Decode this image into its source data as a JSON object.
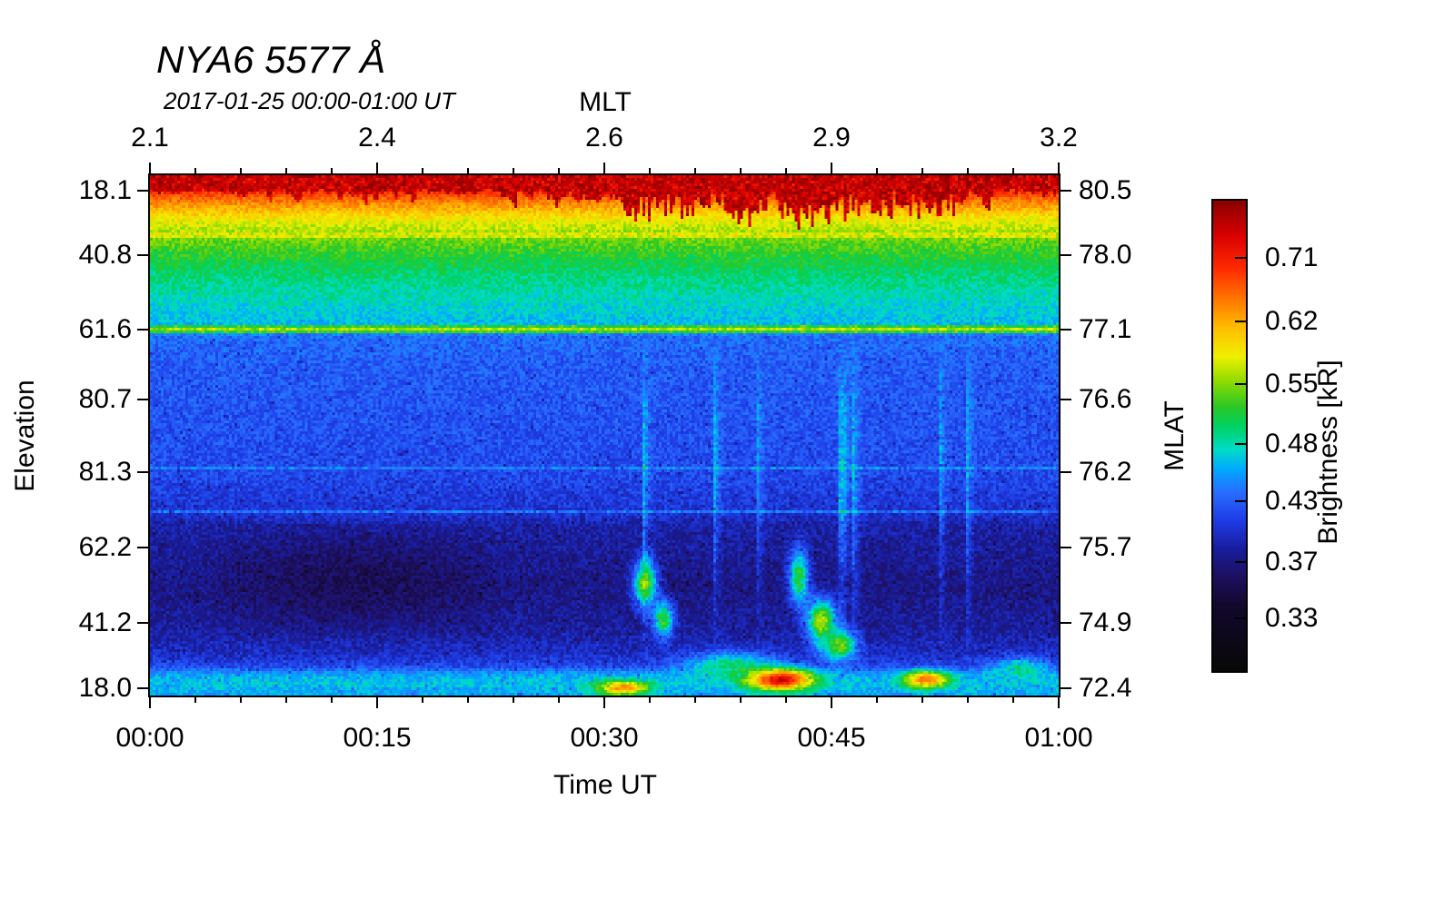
{
  "chart_data": {
    "type": "heatmap",
    "title": "NYA6 5577 Å",
    "subtitle": "2017-01-25 00:00-01:00 UT",
    "top_axis": {
      "label": "MLT",
      "ticks": [
        "2.1",
        "2.4",
        "2.6",
        "2.9",
        "3.2"
      ],
      "tick_positions": [
        0,
        0.25,
        0.5,
        0.75,
        1
      ]
    },
    "x_axis": {
      "label": "Time UT",
      "ticks": [
        "00:00",
        "00:15",
        "00:30",
        "00:45",
        "01:00"
      ],
      "tick_positions": [
        0,
        0.25,
        0.5,
        0.75,
        1
      ]
    },
    "y_axis_left": {
      "label": "Elevation",
      "ticks": [
        "18.1",
        "40.8",
        "61.6",
        "80.7",
        "81.3",
        "62.2",
        "41.2",
        "18.0"
      ],
      "tick_positions": [
        0.03,
        0.153,
        0.296,
        0.431,
        0.57,
        0.715,
        0.861,
        0.986
      ]
    },
    "y_axis_right": {
      "label": "MLAT",
      "ticks": [
        "80.5",
        "78.0",
        "77.1",
        "76.6",
        "76.2",
        "75.7",
        "74.9",
        "72.4"
      ],
      "tick_positions": [
        0.03,
        0.153,
        0.296,
        0.431,
        0.57,
        0.715,
        0.861,
        0.986
      ]
    },
    "colorbar": {
      "label": "Brightness [kR]",
      "ticks": [
        "0.71",
        "0.62",
        "0.55",
        "0.48",
        "0.43",
        "0.37",
        "0.33"
      ],
      "tick_positions": [
        0.122,
        0.257,
        0.39,
        0.517,
        0.639,
        0.768,
        0.888
      ]
    },
    "colormap_stops": [
      [
        0.0,
        [
          8,
          8,
          8
        ]
      ],
      [
        0.14,
        [
          18,
          8,
          45
        ]
      ],
      [
        0.2,
        [
          30,
          15,
          95
        ]
      ],
      [
        0.26,
        [
          25,
          30,
          160
        ]
      ],
      [
        0.32,
        [
          30,
          60,
          230
        ]
      ],
      [
        0.38,
        [
          40,
          110,
          255
        ]
      ],
      [
        0.43,
        [
          0,
          170,
          255
        ]
      ],
      [
        0.47,
        [
          0,
          220,
          200
        ]
      ],
      [
        0.52,
        [
          0,
          210,
          100
        ]
      ],
      [
        0.56,
        [
          40,
          200,
          40
        ]
      ],
      [
        0.62,
        [
          150,
          220,
          0
        ]
      ],
      [
        0.67,
        [
          240,
          240,
          0
        ]
      ],
      [
        0.73,
        [
          255,
          190,
          0
        ]
      ],
      [
        0.79,
        [
          255,
          120,
          0
        ]
      ],
      [
        0.86,
        [
          255,
          40,
          0
        ]
      ],
      [
        0.93,
        [
          215,
          0,
          0
        ]
      ],
      [
        1.0,
        [
          140,
          0,
          0
        ]
      ]
    ],
    "render": {
      "seed": 1337,
      "noise": 0.075,
      "profile": [
        [
          0.0,
          0.95
        ],
        [
          0.02,
          0.89
        ],
        [
          0.05,
          0.78
        ],
        [
          0.085,
          0.67
        ],
        [
          0.12,
          0.6
        ],
        [
          0.16,
          0.545
        ],
        [
          0.2,
          0.505
        ],
        [
          0.25,
          0.465
        ],
        [
          0.29,
          0.44
        ],
        [
          0.31,
          0.375
        ],
        [
          0.36,
          0.358
        ],
        [
          0.5,
          0.345
        ],
        [
          0.575,
          0.335
        ],
        [
          0.62,
          0.315
        ],
        [
          0.655,
          0.3
        ],
        [
          0.675,
          0.265
        ],
        [
          0.79,
          0.235
        ],
        [
          0.87,
          0.255
        ],
        [
          0.92,
          0.29
        ],
        [
          0.945,
          0.33
        ],
        [
          0.96,
          0.42
        ],
        [
          0.978,
          0.455
        ],
        [
          1.0,
          0.425
        ]
      ],
      "hlines": [
        {
          "t": 0.113,
          "w": 0.007,
          "v": 0.695
        },
        {
          "t": 0.295,
          "w": 0.007,
          "v": 0.635
        },
        {
          "t": 0.563,
          "w": 0.003,
          "v": 0.4
        },
        {
          "t": 0.648,
          "w": 0.004,
          "v": 0.395
        }
      ],
      "blobs": [
        {
          "u": 0.545,
          "t": 0.785,
          "ru": 0.013,
          "rt": 0.045,
          "v": 0.62
        },
        {
          "u": 0.565,
          "t": 0.855,
          "ru": 0.011,
          "rt": 0.035,
          "v": 0.58
        },
        {
          "u": 0.715,
          "t": 0.775,
          "ru": 0.011,
          "rt": 0.055,
          "v": 0.56
        },
        {
          "u": 0.74,
          "t": 0.86,
          "ru": 0.016,
          "rt": 0.045,
          "v": 0.64
        },
        {
          "u": 0.76,
          "t": 0.905,
          "ru": 0.018,
          "rt": 0.03,
          "v": 0.6
        },
        {
          "u": 0.64,
          "t": 0.945,
          "ru": 0.05,
          "rt": 0.025,
          "v": 0.52
        },
        {
          "u": 0.695,
          "t": 0.972,
          "ru": 0.035,
          "rt": 0.02,
          "v": 0.93
        },
        {
          "u": 0.52,
          "t": 0.988,
          "ru": 0.028,
          "rt": 0.014,
          "v": 0.78
        },
        {
          "u": 0.855,
          "t": 0.972,
          "ru": 0.024,
          "rt": 0.016,
          "v": 0.82
        },
        {
          "u": 0.96,
          "t": 0.95,
          "ru": 0.03,
          "rt": 0.02,
          "v": 0.5
        }
      ],
      "dark_region": {
        "u0": 0.05,
        "u1": 0.4,
        "t0": 0.66,
        "t1": 0.9,
        "dv": 0.05
      },
      "streaks": {
        "u0": 0.47,
        "u1": 0.92,
        "t0": 0.3,
        "t1": 0.94,
        "strength": 0.15
      },
      "spikes": {
        "base": 0.025,
        "amp": 0.06,
        "extra_u0": 0.52,
        "extra_u1": 0.9,
        "extra": 0.05
      }
    }
  }
}
